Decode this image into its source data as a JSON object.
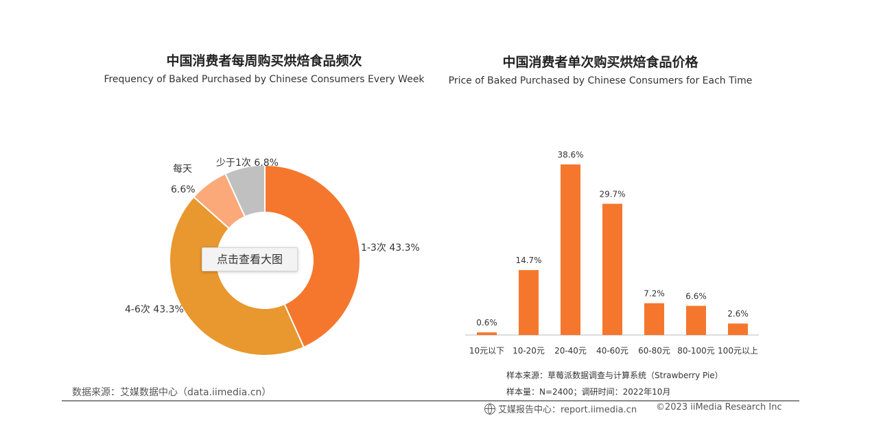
{
  "left": {
    "title_cn": "中国消费者每周购买烘焙食品频次",
    "title_en": "Frequency of Baked Purchased by Chinese Consumers Every Week",
    "source": "数据来源：艾媒数据中心（data.iimedia.cn）",
    "view_button": "点击查看大图"
  },
  "right": {
    "title_cn": "中国消费者单次购买烘焙食品价格",
    "title_en": "Price of Baked Purchased by Chinese Consumers for Each Time",
    "note1": "样本来源：草莓派数据调查与计算系统（Strawberry Pie）",
    "note2": "样本量：N=2400；调研时间：2022年10月"
  },
  "footer": {
    "report": "艾媒报告中心：report.iimedia.cn",
    "copyright": "©2023 iiMedia Research Inc"
  },
  "chart_data": [
    {
      "type": "pie",
      "title": "中国消费者每周购买烘焙食品频次",
      "subtitle": "Frequency of Baked Purchased by Chinese Consumers Every Week",
      "categories": [
        "1-3次",
        "4-6次",
        "每天",
        "少于1次"
      ],
      "values": [
        43.3,
        43.3,
        6.6,
        6.8
      ],
      "labels": [
        "1-3次 43.3%",
        "4-6次 43.3%",
        "6.6%",
        "少于1次 6.8%"
      ],
      "extra_label": "每天",
      "colors": [
        "#F5772D",
        "#E8982E",
        "#FCA97A",
        "#C0C0C0"
      ],
      "donut": true
    },
    {
      "type": "bar",
      "title": "中国消费者单次购买烘焙食品价格",
      "subtitle": "Price of Baked Purchased by Chinese Consumers for Each Time",
      "categories": [
        "10元以下",
        "10-20元",
        "20-40元",
        "40-60元",
        "60-80元",
        "80-100元",
        "100元以上"
      ],
      "values": [
        0.6,
        14.7,
        38.6,
        29.7,
        7.2,
        6.6,
        2.6
      ],
      "data_labels": [
        "0.6%",
        "14.7%",
        "38.6%",
        "29.7%",
        "7.2%",
        "6.6%",
        "2.6%"
      ],
      "color": "#F5772D",
      "ylim": [
        0,
        40
      ],
      "grid": false
    }
  ]
}
